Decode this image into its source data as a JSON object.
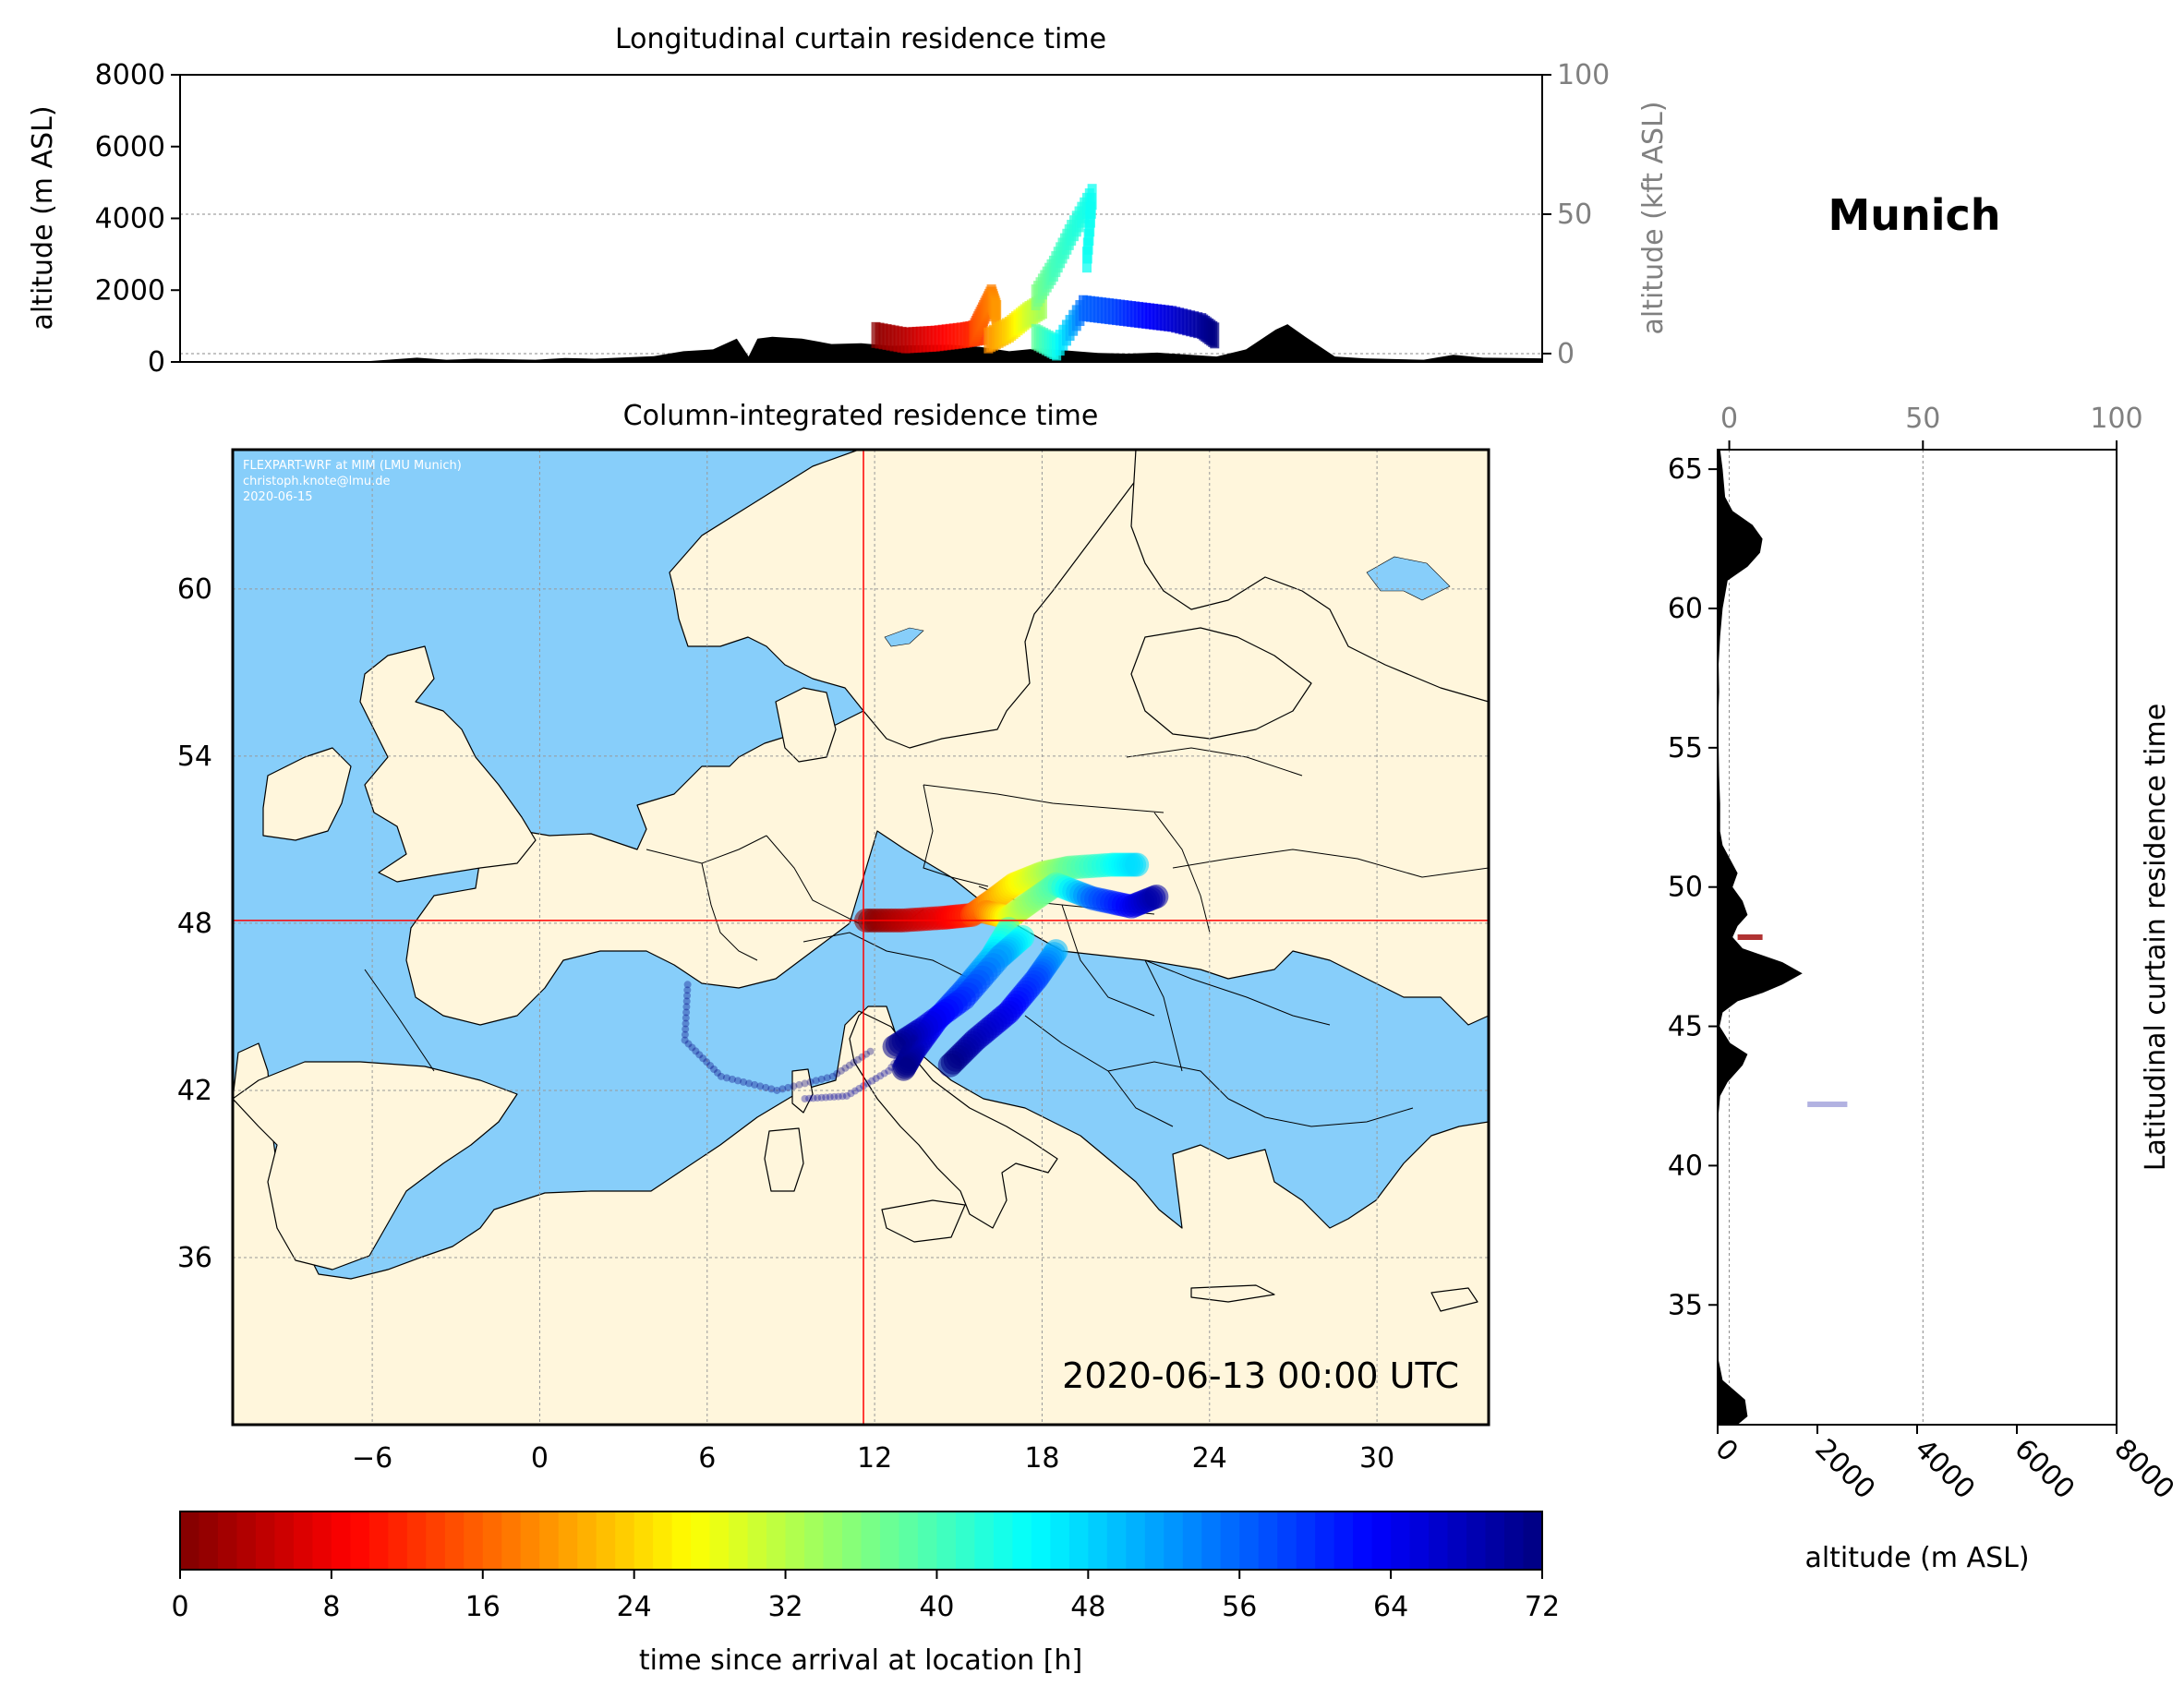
{
  "location": "Munich",
  "date_label": "2020-06-13 00:00 UTC",
  "credit_lines": [
    "FLEXPART-WRF at MIM (LMU Munich)",
    "christoph.knote@lmu.de",
    "2020-06-15"
  ],
  "colors": {
    "ocean": "#87CEFA",
    "land": "#FFF6DC",
    "terrain": "#000000",
    "crosshair": "#FF0000",
    "secondary_axis_text": "#808080"
  },
  "chart_data": [
    {
      "id": "top",
      "type": "area",
      "title": "Longitudinal curtain residence time",
      "ylabel": "altitude (m ASL)",
      "ylim": [
        0,
        8000
      ],
      "yticks": [
        "0",
        "2000",
        "4000",
        "6000",
        "8000"
      ],
      "xlim": [
        -12,
        34
      ],
      "y2label": "altitude (kft ASL)",
      "y2ticks": [
        "0",
        "50",
        "100"
      ],
      "y2lim": [
        -3,
        100
      ],
      "terrain_profile": {
        "x": [
          -12,
          -6,
          -4,
          -3,
          -2,
          0,
          1,
          2,
          4,
          5,
          6,
          6.8,
          7.2,
          7.5,
          8,
          9,
          10,
          11,
          12,
          14,
          15,
          16,
          17,
          19,
          20,
          21,
          23,
          24,
          25,
          25.4,
          26,
          27,
          28,
          30,
          31,
          32,
          34
        ],
        "y": [
          0,
          0,
          120,
          60,
          90,
          60,
          110,
          90,
          160,
          300,
          350,
          650,
          150,
          650,
          700,
          650,
          500,
          520,
          450,
          480,
          420,
          300,
          380,
          250,
          230,
          260,
          150,
          350,
          900,
          1050,
          700,
          150,
          100,
          60,
          200,
          120,
          100
        ]
      },
      "trajectory_tracks": [
        {
          "x": [
            11.5,
            12.5,
            13.5,
            14.5,
            15.2
          ],
          "y": [
            750,
            600,
            650,
            750,
            850
          ],
          "t": [
            1,
            4,
            8,
            11,
            14
          ]
        },
        {
          "x": [
            14.8,
            15.1,
            15.4,
            15.6
          ],
          "y": [
            800,
            1300,
            1800,
            1300
          ],
          "t": [
            14,
            16,
            18,
            20
          ]
        },
        {
          "x": [
            15.3,
            16.0,
            16.6,
            17.2
          ],
          "y": [
            600,
            900,
            1300,
            1600
          ],
          "t": [
            19,
            24,
            30,
            34
          ]
        },
        {
          "x": [
            16.9,
            17.5,
            18.1,
            18.8,
            18.6
          ],
          "y": [
            1800,
            2600,
            3600,
            4600,
            2600
          ],
          "t": [
            36,
            40,
            42,
            44,
            44
          ]
        },
        {
          "x": [
            16.9,
            17.6,
            18.5,
            19.5,
            20.5,
            21.5,
            22.5,
            23.0
          ],
          "y": [
            700,
            400,
            1500,
            1400,
            1300,
            1200,
            1000,
            700
          ],
          "t": [
            38,
            44,
            56,
            58,
            62,
            66,
            70,
            72
          ]
        }
      ]
    },
    {
      "id": "map",
      "type": "heatmap",
      "title": "Column-integrated residence time",
      "xlim": [
        -11,
        34
      ],
      "ylim": [
        30,
        65
      ],
      "xticks": [
        "−6",
        "0",
        "6",
        "12",
        "18",
        "24",
        "30"
      ],
      "yticks": [
        "36",
        "42",
        "48",
        "54",
        "60"
      ],
      "grid": true,
      "release_location": {
        "lon": 11.6,
        "lat": 48.1
      },
      "trajectory_tracks": [
        {
          "lon": [
            11.7,
            13,
            14.5,
            15.5
          ],
          "lat": [
            48.1,
            48.1,
            48.2,
            48.3
          ],
          "t": [
            0,
            4,
            8,
            12
          ]
        },
        {
          "lon": [
            15.5,
            16.2,
            17,
            18,
            19,
            20.5,
            21.5
          ],
          "lat": [
            48.3,
            48.8,
            49.4,
            49.8,
            50.0,
            50.1,
            50.1
          ],
          "t": [
            14,
            20,
            26,
            32,
            38,
            44,
            48
          ]
        },
        {
          "lon": [
            16,
            16.8,
            17.5,
            18.5,
            19.8,
            21.2,
            22.2
          ],
          "lat": [
            48.4,
            48.2,
            48.7,
            49.4,
            48.9,
            48.6,
            49.0
          ],
          "t": [
            18,
            28,
            34,
            40,
            56,
            64,
            70
          ]
        },
        {
          "lon": [
            16.8,
            16.2,
            15.2,
            14.2,
            13.4,
            13.0
          ],
          "lat": [
            47.8,
            46.8,
            45.6,
            44.5,
            43.4,
            42.7
          ],
          "t": [
            40,
            48,
            56,
            62,
            68,
            72
          ]
        },
        {
          "lon": [
            17.3,
            16.5,
            15.2,
            13.7,
            12.6
          ],
          "lat": [
            47.5,
            46.8,
            45.3,
            44.2,
            43.5
          ],
          "t": [
            44,
            52,
            60,
            66,
            72
          ]
        },
        {
          "lon": [
            18.5,
            17.8,
            16.8,
            15.6,
            14.6
          ],
          "lat": [
            47.0,
            46.0,
            44.8,
            43.8,
            42.8
          ],
          "t": [
            50,
            58,
            64,
            68,
            72
          ]
        },
        {
          "lon": [
            5.3,
            5.2,
            6.5,
            8.5,
            10.5,
            12.0
          ],
          "lat": [
            45.8,
            43.8,
            42.5,
            42.0,
            42.5,
            43.5
          ],
          "t": [
            72,
            72,
            72,
            72,
            72,
            72
          ]
        },
        {
          "lon": [
            9.5,
            11.0,
            12.5,
            13.5
          ],
          "lat": [
            41.7,
            41.8,
            42.7,
            44.0
          ],
          "t": [
            70,
            70,
            70,
            70
          ]
        }
      ]
    },
    {
      "id": "right",
      "type": "area",
      "ylabel": "Latitudinal curtain residence time",
      "xlabel": "altitude (m ASL)",
      "xlim": [
        0,
        8000
      ],
      "xticks": [
        "0",
        "2000",
        "4000",
        "6000",
        "8000"
      ],
      "x2lim": [
        -3,
        100
      ],
      "x2ticks": [
        "0",
        "50",
        "100"
      ],
      "ylim": [
        30.7,
        65.7
      ],
      "yticks": [
        "35",
        "40",
        "45",
        "50",
        "55",
        "60",
        "65"
      ],
      "terrain_profile": {
        "lat": [
          30.7,
          31.0,
          31.6,
          32.3,
          33.0,
          34.5,
          36.0,
          38.0,
          40.0,
          41.5,
          42.5,
          43.0,
          43.6,
          44.0,
          44.4,
          45.0,
          45.5,
          45.9,
          46.2,
          46.5,
          46.9,
          47.3,
          47.8,
          48.2,
          48.6,
          49.0,
          49.5,
          50.0,
          50.5,
          51.0,
          51.5,
          52.0,
          53.0,
          54.0,
          55.0,
          56.0,
          57.0,
          58.0,
          59.0,
          60.0,
          61.0,
          61.5,
          62.0,
          62.5,
          63.0,
          63.5,
          64.0,
          65.0,
          65.7
        ],
        "alt": [
          400,
          600,
          550,
          100,
          20,
          0,
          0,
          0,
          0,
          0,
          50,
          200,
          500,
          600,
          250,
          40,
          100,
          400,
          900,
          1300,
          1700,
          1300,
          500,
          300,
          400,
          600,
          500,
          300,
          400,
          250,
          100,
          50,
          50,
          30,
          20,
          10,
          30,
          20,
          50,
          100,
          200,
          600,
          850,
          900,
          700,
          300,
          150,
          100,
          50
        ]
      },
      "residence_marks": [
        {
          "lat": 48.2,
          "alt_from": 400,
          "alt_to": 900,
          "t": 2
        },
        {
          "lat": 42.2,
          "alt_from": 1800,
          "alt_to": 2600,
          "t": 70
        }
      ]
    },
    {
      "id": "colorbar",
      "type": "colorbar",
      "label": "time since arrival at location [h]",
      "range": [
        0,
        72
      ],
      "ticks": [
        "0",
        "8",
        "16",
        "24",
        "32",
        "40",
        "48",
        "56",
        "64",
        "72"
      ],
      "colormap": "jet_r",
      "levels": 72
    }
  ]
}
